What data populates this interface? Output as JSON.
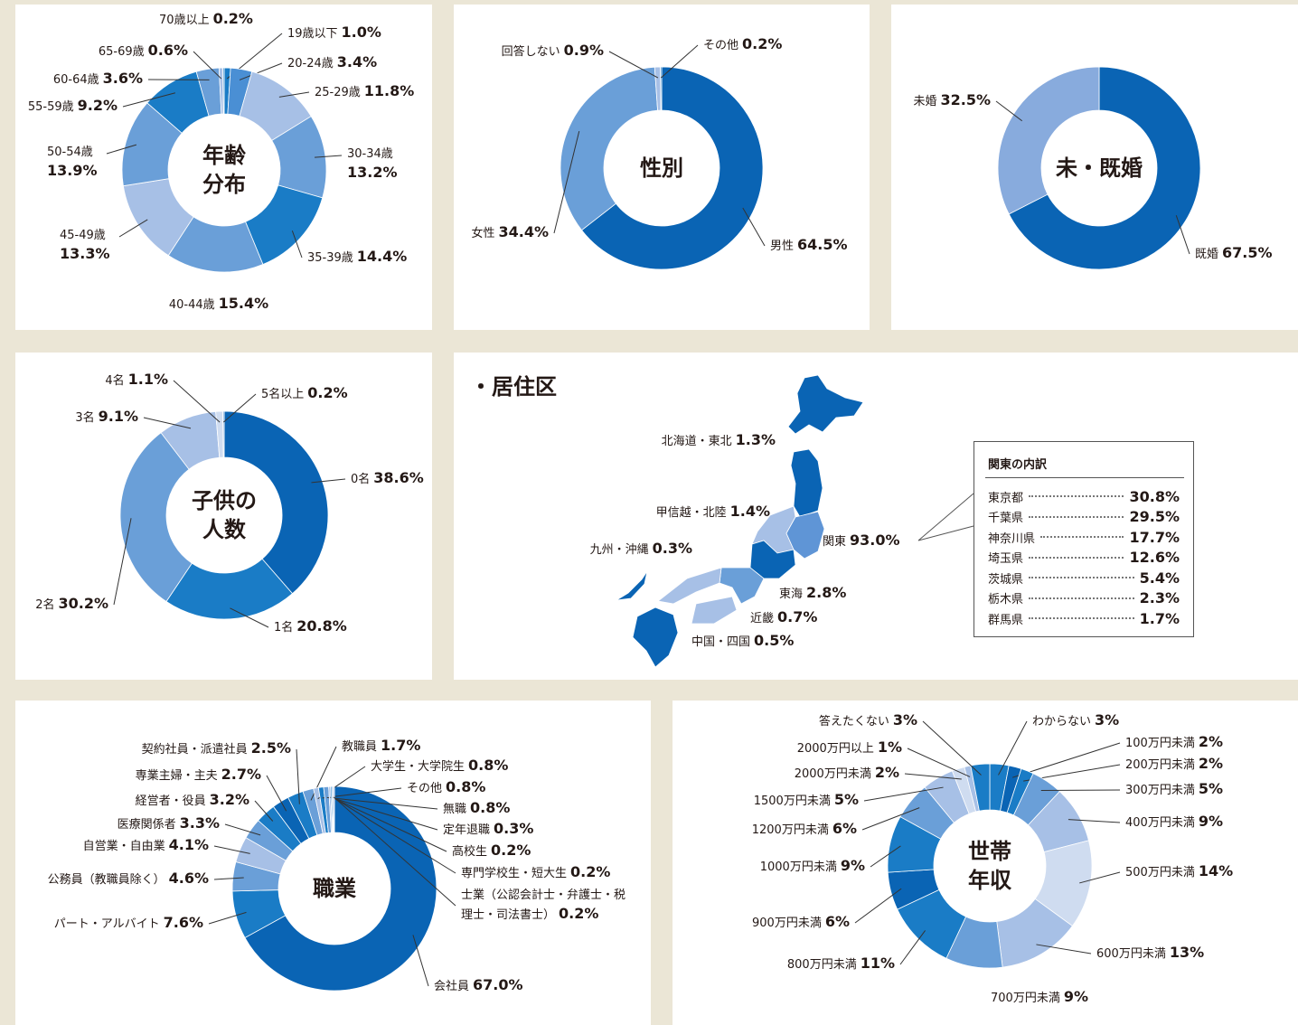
{
  "chart_data": [
    {
      "type": "donut",
      "title_lines": [
        "年齢",
        "分布"
      ],
      "categories": [
        "19歳以下",
        "20-24歳",
        "25-29歳",
        "30-34歳",
        "35-39歳",
        "40-44歳",
        "45-49歳",
        "50-54歳",
        "55-59歳",
        "60-64歳",
        "65-69歳",
        "70歳以上"
      ],
      "values": [
        1.0,
        3.4,
        11.8,
        13.2,
        14.4,
        15.4,
        13.3,
        13.9,
        9.2,
        3.6,
        0.6,
        0.2
      ],
      "value_labels": [
        "1.0%",
        "3.4%",
        "11.8%",
        "13.2%",
        "14.4%",
        "15.4%",
        "13.3%",
        "13.9%",
        "9.2%",
        "3.6%",
        "0.6%",
        "0.2%"
      ],
      "colors": [
        "#1a7cc6",
        "#4a8fd4",
        "#a7c0e6",
        "#6a9fd8",
        "#1a7cc6",
        "#6a9fd8",
        "#a7c0e6",
        "#6a9fd8",
        "#1a7cc6",
        "#6a9fd8",
        "#a7c0e6",
        "#1a7cc6"
      ]
    },
    {
      "type": "donut",
      "title_lines": [
        "性別"
      ],
      "categories": [
        "男性",
        "女性",
        "回答しない",
        "その他"
      ],
      "values": [
        64.5,
        34.4,
        0.9,
        0.2
      ],
      "value_labels": [
        "64.5%",
        "34.4%",
        "0.9%",
        "0.2%"
      ],
      "colors": [
        "#0a64b4",
        "#6a9fd8",
        "#a7c0e6",
        "#1a7cc6"
      ]
    },
    {
      "type": "donut",
      "title_lines": [
        "未・既婚"
      ],
      "categories": [
        "既婚",
        "未婚"
      ],
      "values": [
        67.5,
        32.5
      ],
      "value_labels": [
        "67.5%",
        "32.5%"
      ],
      "colors": [
        "#0a64b4",
        "#88abdd"
      ]
    },
    {
      "type": "donut",
      "title_lines": [
        "子供の",
        "人数"
      ],
      "categories": [
        "0名",
        "1名",
        "2名",
        "3名",
        "4名",
        "5名以上"
      ],
      "values": [
        38.6,
        20.8,
        30.2,
        9.1,
        1.1,
        0.2
      ],
      "value_labels": [
        "38.6%",
        "20.8%",
        "30.2%",
        "9.1%",
        "1.1%",
        "0.2%"
      ],
      "colors": [
        "#0a64b4",
        "#1a7cc6",
        "#6a9fd8",
        "#a7c0e6",
        "#cfdcf0",
        "#6a9fd8"
      ]
    },
    {
      "type": "map",
      "title": "・居住区",
      "categories": [
        "北海道・東北",
        "甲信越・北陸",
        "関東",
        "東海",
        "近畿",
        "中国・四国",
        "九州・沖縄"
      ],
      "values": [
        1.3,
        1.4,
        93.0,
        2.8,
        0.7,
        0.5,
        0.3
      ],
      "value_labels": [
        "1.3%",
        "1.4%",
        "93.0%",
        "2.8%",
        "0.7%",
        "0.5%",
        "0.3%"
      ],
      "colors": [
        "#0a64b4",
        "#a7c0e6",
        "#5f95d6",
        "#0a64b4",
        "#6a9fd8",
        "#a7c0e6",
        "#0a64b4"
      ],
      "breakdown": {
        "title": "関東の内訳",
        "rows": [
          [
            "東京都",
            "30.8%"
          ],
          [
            "千葉県",
            "29.5%"
          ],
          [
            "神奈川県",
            "17.7%"
          ],
          [
            "埼玉県",
            "12.6%"
          ],
          [
            "茨城県",
            "5.4%"
          ],
          [
            "栃木県",
            "2.3%"
          ],
          [
            "群馬県",
            "1.7%"
          ]
        ]
      }
    },
    {
      "type": "donut",
      "title_lines": [
        "職業"
      ],
      "categories": [
        "会社員",
        "パート・アルバイト",
        "公務員（教職員除く）",
        "自営業・自由業",
        "医療関係者",
        "経営者・役員",
        "専業主婦・主夫",
        "契約社員・派遣社員",
        "教職員",
        "大学生・大学院生",
        "その他",
        "無職",
        "定年退職",
        "高校生",
        "専門学校生・短大生",
        "士業（公認会計士・弁護士・税理士・司法書士）"
      ],
      "values": [
        67.0,
        7.6,
        4.6,
        4.1,
        3.3,
        3.2,
        2.7,
        2.5,
        1.7,
        0.8,
        0.8,
        0.8,
        0.3,
        0.2,
        0.2,
        0.2
      ],
      "value_labels": [
        "67.0%",
        "7.6%",
        "4.6%",
        "4.1%",
        "3.3%",
        "3.2%",
        "2.7%",
        "2.5%",
        "1.7%",
        "0.8%",
        "0.8%",
        "0.8%",
        "0.3%",
        "0.2%",
        "0.2%",
        "0.2%"
      ],
      "colors": [
        "#0a64b4",
        "#1a7cc6",
        "#6a9fd8",
        "#a7c0e6",
        "#6a9fd8",
        "#1a7cc6",
        "#0a64b4",
        "#1a7cc6",
        "#6a9fd8",
        "#a7c0e6",
        "#1a7cc6",
        "#6a9fd8",
        "#a7c0e6",
        "#1a7cc6",
        "#6a9fd8",
        "#a7c0e6"
      ]
    },
    {
      "type": "donut",
      "title_lines": [
        "世帯",
        "年収"
      ],
      "categories": [
        "わからない",
        "100万円未満",
        "200万円未満",
        "300万円未満",
        "400万円未満",
        "500万円未満",
        "600万円未満",
        "700万円未満",
        "800万円未満",
        "900万円未満",
        "1000万円未満",
        "1200万円未満",
        "1500万円未満",
        "2000万円未満",
        "2000万円以上",
        "答えたくない"
      ],
      "values": [
        3,
        2,
        2,
        5,
        9,
        14,
        13,
        9,
        11,
        6,
        9,
        6,
        5,
        2,
        1,
        3
      ],
      "value_labels": [
        "3%",
        "2%",
        "2%",
        "5%",
        "9%",
        "14%",
        "13%",
        "9%",
        "11%",
        "6%",
        "9%",
        "6%",
        "5%",
        "2%",
        "1%",
        "3%"
      ],
      "colors": [
        "#1a7cc6",
        "#0a64b4",
        "#1a7cc6",
        "#6a9fd8",
        "#a7c0e6",
        "#cfdcf0",
        "#a7c0e6",
        "#6a9fd8",
        "#1a7cc6",
        "#0a64b4",
        "#1a7cc6",
        "#6a9fd8",
        "#a7c0e6",
        "#cfdcf0",
        "#a7c0e6",
        "#1a7cc6"
      ]
    }
  ]
}
